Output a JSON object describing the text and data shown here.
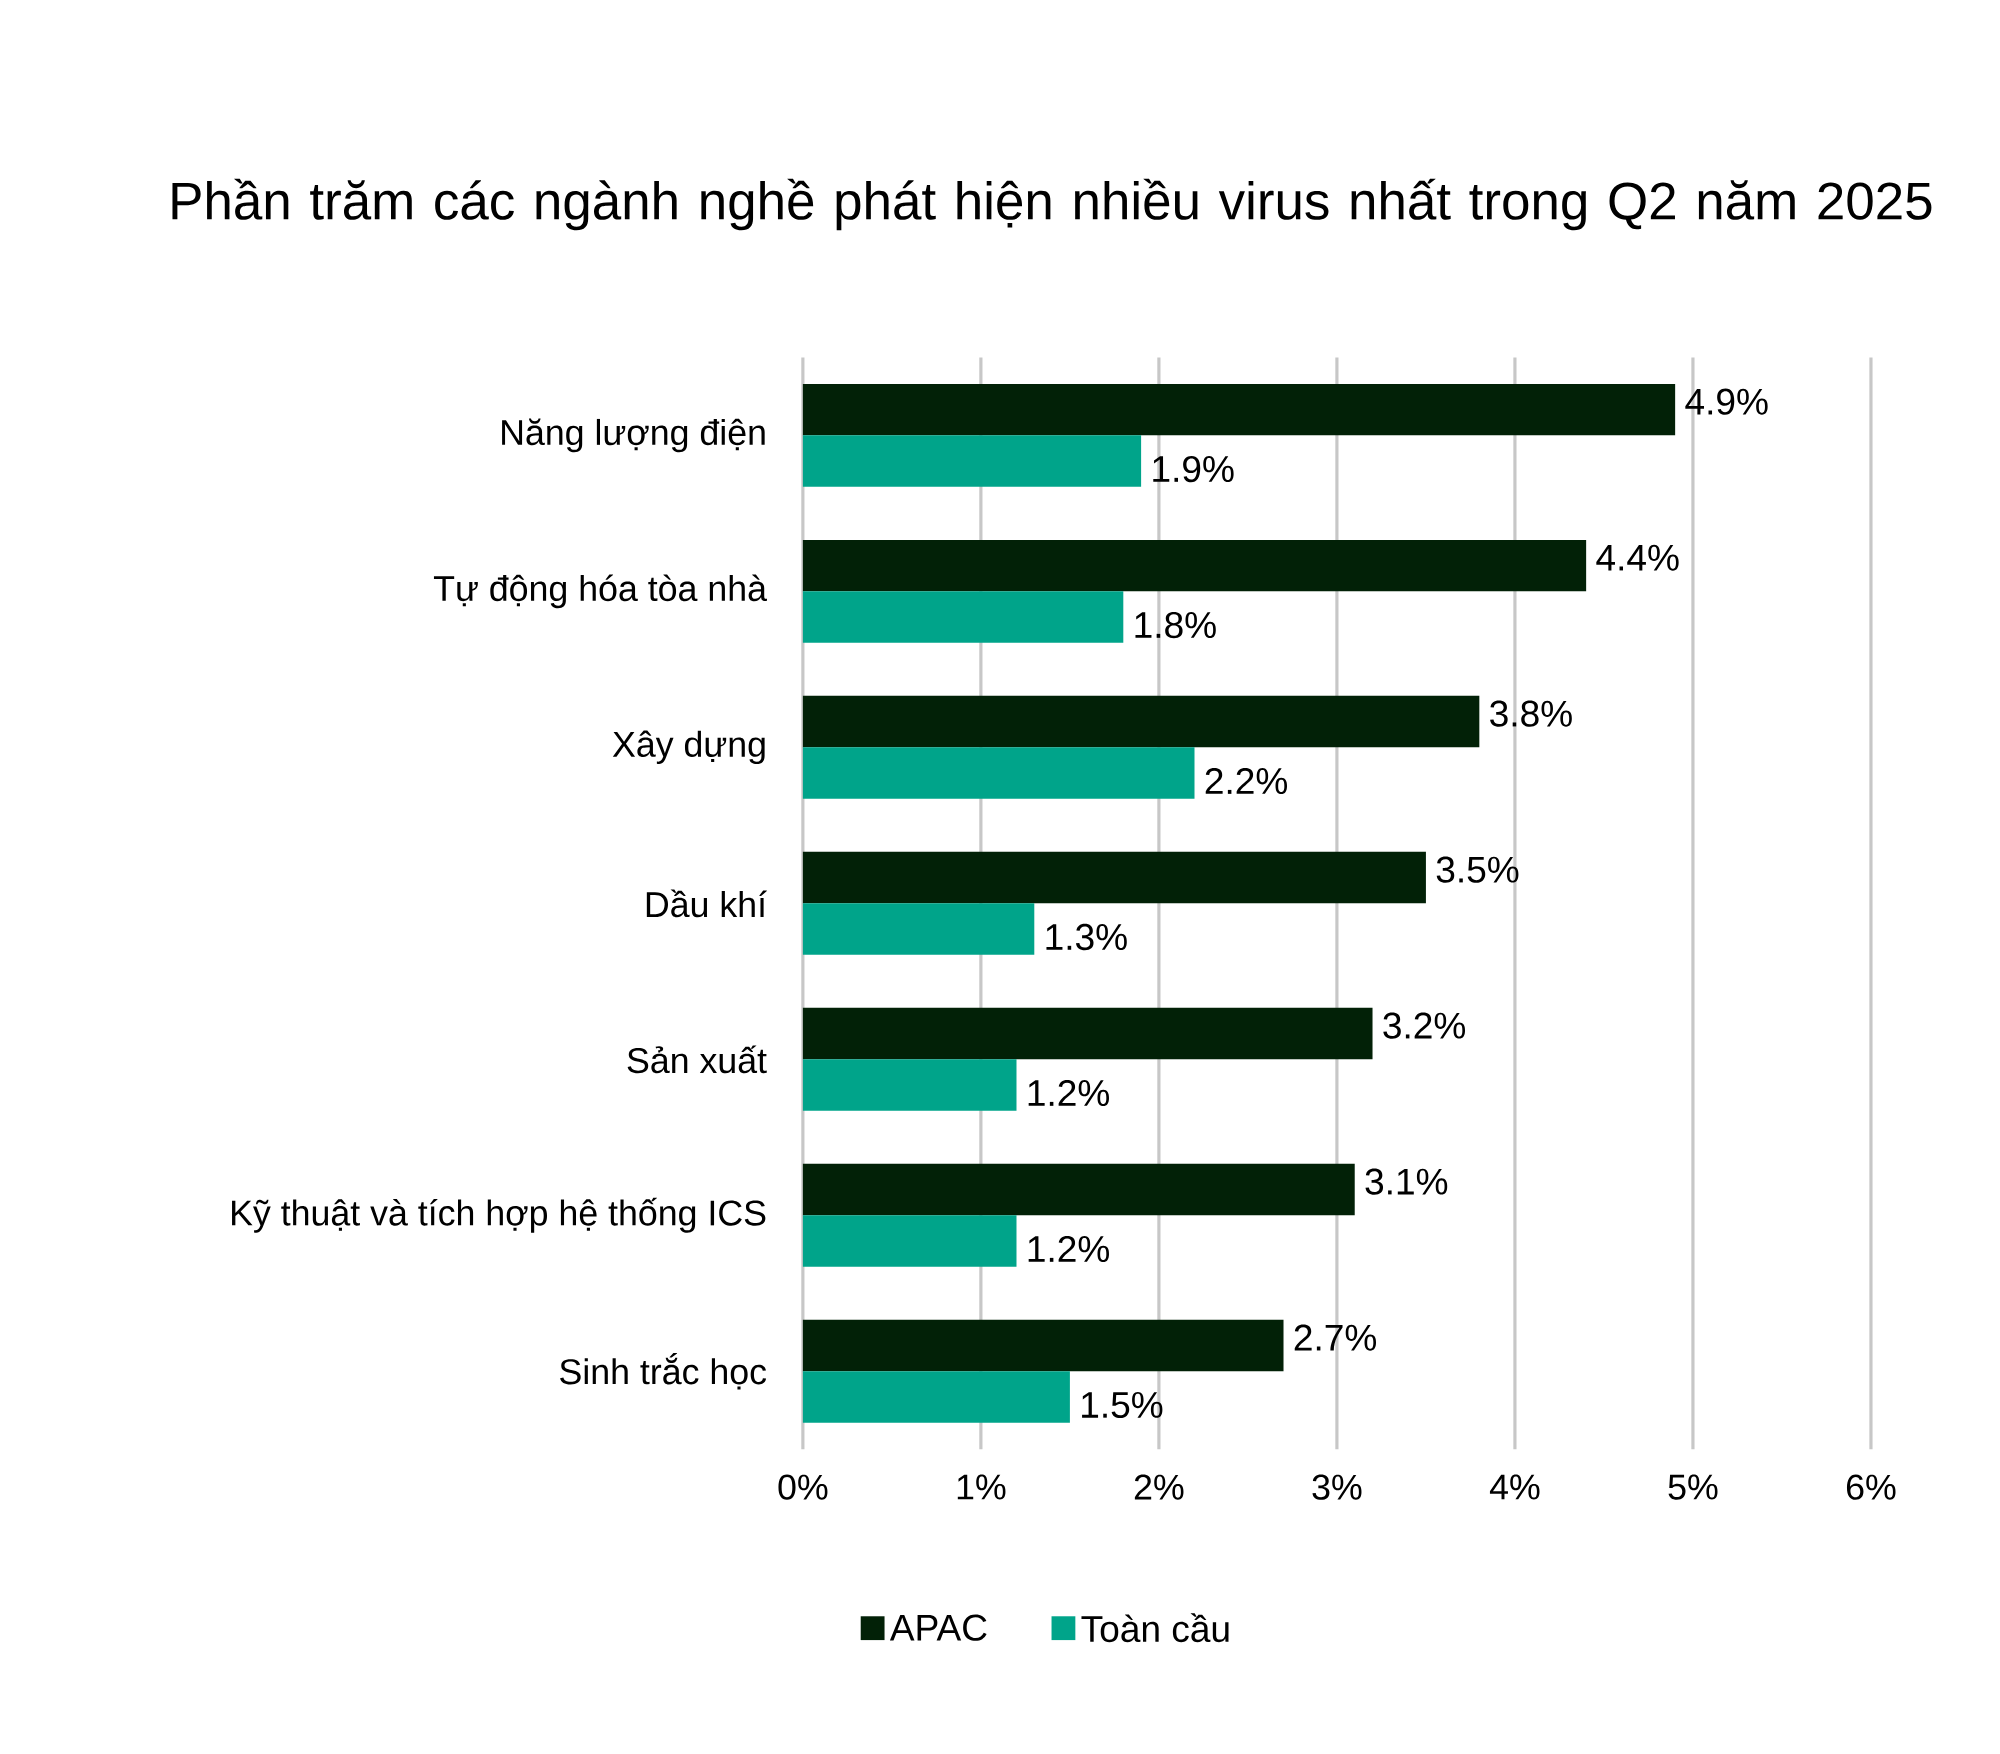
{
  "chart_data": {
    "type": "bar",
    "orientation": "horizontal",
    "title": "Phần trăm các ngành nghề phát hiện nhiều virus nhất trong Q2 năm 2025",
    "categories": [
      "Năng lượng điện",
      "Tự động hóa tòa nhà",
      "Xây dựng",
      "Dầu khí",
      "Sản xuất",
      "Kỹ thuật và tích hợp hệ thống ICS",
      "Sinh trắc học"
    ],
    "series": [
      {
        "name": "APAC",
        "color": "#022107",
        "values": [
          4.9,
          4.4,
          3.8,
          3.5,
          3.2,
          3.1,
          2.7
        ],
        "value_labels": [
          "4.9%",
          "4.4%",
          "3.8%",
          "3.5%",
          "3.2%",
          "3.1%",
          "2.7%"
        ]
      },
      {
        "name": "Toàn cầu",
        "color": "#00a48a",
        "values": [
          1.9,
          1.8,
          2.2,
          1.3,
          1.2,
          1.2,
          1.5
        ],
        "value_labels": [
          "1.9%",
          "1.8%",
          "2.2%",
          "1.3%",
          "1.2%",
          "1.2%",
          "1.5%"
        ]
      }
    ],
    "xlim": [
      0,
      6
    ],
    "xticks": [
      {
        "value": 0,
        "label": "0%"
      },
      {
        "value": 1,
        "label": "1%"
      },
      {
        "value": 2,
        "label": "2%"
      },
      {
        "value": 3,
        "label": "3%"
      },
      {
        "value": 4,
        "label": "4%"
      },
      {
        "value": 5,
        "label": "5%"
      },
      {
        "value": 6,
        "label": "6%"
      }
    ],
    "grid": "x",
    "legend": "bottom"
  }
}
